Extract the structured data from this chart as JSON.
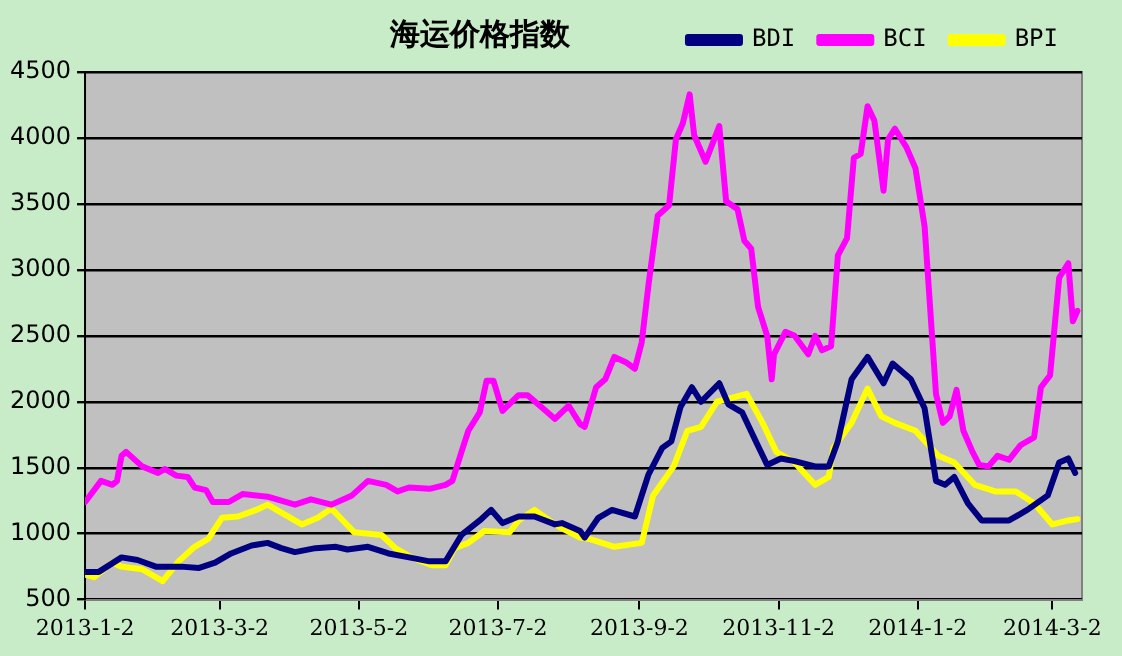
{
  "chart_data": {
    "type": "line",
    "title": "海运价格指数",
    "legend": "top right",
    "grid": "y",
    "marker": "none",
    "line_style": "solid",
    "ylim": [
      500,
      4500
    ],
    "yticks": [
      500,
      1000,
      1500,
      2000,
      2500,
      3000,
      3500,
      4000,
      4500
    ],
    "xlim": [
      "2013-01-02",
      "2014-03-15"
    ],
    "xticks": [
      {
        "value": "2013-01-02",
        "label": "2013-1-2"
      },
      {
        "value": "2013-03-02",
        "label": "2013-3-2"
      },
      {
        "value": "2013-05-02",
        "label": "2013-5-2"
      },
      {
        "value": "2013-07-02",
        "label": "2013-7-2"
      },
      {
        "value": "2013-09-02",
        "label": "2013-9-2"
      },
      {
        "value": "2013-11-02",
        "label": "2013-11-2"
      },
      {
        "value": "2014-01-02",
        "label": "2014-1-2"
      },
      {
        "value": "2014-03-02",
        "label": "2014-3-2"
      }
    ],
    "series": [
      {
        "name": "BDI",
        "color": "#000080",
        "x": [
          "2013-01-02",
          "2013-01-08",
          "2013-01-18",
          "2013-01-25",
          "2013-02-02",
          "2013-02-13",
          "2013-02-21",
          "2013-02-28",
          "2013-03-07",
          "2013-03-16",
          "2013-03-23",
          "2013-03-29",
          "2013-04-04",
          "2013-04-13",
          "2013-04-22",
          "2013-04-27",
          "2013-05-06",
          "2013-05-15",
          "2013-05-24",
          "2013-06-02",
          "2013-06-09",
          "2013-06-16",
          "2013-06-24",
          "2013-06-29",
          "2013-07-04",
          "2013-07-11",
          "2013-07-18",
          "2013-07-27",
          "2013-07-30",
          "2013-08-07",
          "2013-08-09",
          "2013-08-15",
          "2013-08-21",
          "2013-08-31",
          "2013-09-06",
          "2013-09-12",
          "2013-09-16",
          "2013-09-20",
          "2013-09-25",
          "2013-09-29",
          "2013-10-07",
          "2013-10-11",
          "2013-10-17",
          "2013-10-23",
          "2013-10-28",
          "2013-11-03",
          "2013-11-09",
          "2013-11-18",
          "2013-11-24",
          "2013-11-28",
          "2013-12-04",
          "2013-12-11",
          "2013-12-18",
          "2013-12-22",
          "2013-12-30",
          "2014-01-05",
          "2014-01-10",
          "2014-01-14",
          "2014-01-18",
          "2014-01-24",
          "2014-01-30",
          "2014-02-11",
          "2014-02-19",
          "2014-02-28",
          "2014-03-05",
          "2014-03-09",
          "2014-03-12"
        ],
        "values": [
          710,
          710,
          820,
          800,
          750,
          750,
          740,
          780,
          850,
          910,
          930,
          890,
          860,
          890,
          900,
          880,
          900,
          850,
          820,
          790,
          790,
          990,
          1100,
          1180,
          1080,
          1130,
          1130,
          1070,
          1080,
          1020,
          970,
          1120,
          1180,
          1130,
          1450,
          1650,
          1700,
          1960,
          2110,
          2000,
          2140,
          1980,
          1920,
          1700,
          1520,
          1570,
          1550,
          1510,
          1510,
          1700,
          2170,
          2340,
          2140,
          2290,
          2170,
          1950,
          1400,
          1370,
          1430,
          1230,
          1100,
          1100,
          1180,
          1290,
          1540,
          1570,
          1460
        ]
      },
      {
        "name": "BCI",
        "color": "#ff00ff",
        "x": [
          "2013-01-02",
          "2013-01-09",
          "2013-01-14",
          "2013-01-16",
          "2013-01-18",
          "2013-01-20",
          "2013-01-27",
          "2013-02-03",
          "2013-02-06",
          "2013-02-11",
          "2013-02-16",
          "2013-02-19",
          "2013-02-24",
          "2013-02-27",
          "2013-03-06",
          "2013-03-12",
          "2013-03-23",
          "2013-04-04",
          "2013-04-11",
          "2013-04-20",
          "2013-04-29",
          "2013-05-06",
          "2013-05-14",
          "2013-05-19",
          "2013-05-24",
          "2013-06-02",
          "2013-06-09",
          "2013-06-12",
          "2013-06-16",
          "2013-06-19",
          "2013-06-24",
          "2013-06-27",
          "2013-06-30",
          "2013-07-04",
          "2013-07-11",
          "2013-07-15",
          "2013-07-21",
          "2013-07-27",
          "2013-08-02",
          "2013-08-07",
          "2013-08-09",
          "2013-08-14",
          "2013-08-18",
          "2013-08-22",
          "2013-08-27",
          "2013-08-31",
          "2013-09-03",
          "2013-09-06",
          "2013-09-10",
          "2013-09-15",
          "2013-09-18",
          "2013-09-21",
          "2013-09-24",
          "2013-09-26",
          "2013-10-01",
          "2013-10-07",
          "2013-10-10",
          "2013-10-15",
          "2013-10-18",
          "2013-10-21",
          "2013-10-24",
          "2013-10-28",
          "2013-10-30",
          "2013-10-31",
          "2013-11-05",
          "2013-11-09",
          "2013-11-15",
          "2013-11-18",
          "2013-11-21",
          "2013-11-25",
          "2013-11-28",
          "2013-12-02",
          "2013-12-05",
          "2013-12-08",
          "2013-12-11",
          "2013-12-14",
          "2013-12-18",
          "2013-12-20",
          "2013-12-23",
          "2013-12-28",
          "2014-01-01",
          "2014-01-05",
          "2014-01-10",
          "2014-01-13",
          "2014-01-16",
          "2014-01-19",
          "2014-01-22",
          "2014-01-26",
          "2014-01-29",
          "2014-02-02",
          "2014-02-06",
          "2014-02-11",
          "2014-02-16",
          "2014-02-22",
          "2014-02-25",
          "2014-03-01",
          "2014-03-05",
          "2014-03-09",
          "2014-03-11",
          "2014-03-13"
        ],
        "values": [
          1240,
          1400,
          1370,
          1400,
          1590,
          1620,
          1510,
          1460,
          1490,
          1440,
          1430,
          1350,
          1330,
          1240,
          1240,
          1300,
          1280,
          1220,
          1260,
          1220,
          1290,
          1400,
          1370,
          1320,
          1350,
          1340,
          1370,
          1400,
          1620,
          1780,
          1920,
          2160,
          2160,
          1930,
          2050,
          2050,
          1960,
          1870,
          1970,
          1830,
          1810,
          2110,
          2170,
          2340,
          2300,
          2250,
          2450,
          2890,
          3410,
          3490,
          3990,
          4110,
          4330,
          4020,
          3820,
          4090,
          3520,
          3460,
          3220,
          3160,
          2720,
          2500,
          2170,
          2360,
          2530,
          2500,
          2360,
          2500,
          2390,
          2420,
          3110,
          3240,
          3850,
          3880,
          4240,
          4130,
          3600,
          3990,
          4070,
          3930,
          3770,
          3330,
          2060,
          1840,
          1890,
          2090,
          1780,
          1620,
          1520,
          1510,
          1590,
          1560,
          1670,
          1730,
          2110,
          2200,
          2940,
          3050,
          2610,
          2690
        ]
      },
      {
        "name": "BPI",
        "color": "#ffff00",
        "x": [
          "2013-01-02",
          "2013-01-06",
          "2013-01-14",
          "2013-01-18",
          "2013-01-27",
          "2013-02-05",
          "2013-02-12",
          "2013-02-19",
          "2013-02-25",
          "2013-03-03",
          "2013-03-10",
          "2013-03-18",
          "2013-03-23",
          "2013-03-29",
          "2013-04-07",
          "2013-04-14",
          "2013-04-20",
          "2013-04-25",
          "2013-04-30",
          "2013-05-12",
          "2013-05-18",
          "2013-05-25",
          "2013-06-03",
          "2013-06-09",
          "2013-06-13",
          "2013-06-19",
          "2013-06-26",
          "2013-07-07",
          "2013-07-11",
          "2013-07-18",
          "2013-07-27",
          "2013-07-30",
          "2013-08-07",
          "2013-08-11",
          "2013-08-22",
          "2013-09-03",
          "2013-09-08",
          "2013-09-17",
          "2013-09-23",
          "2013-09-29",
          "2013-10-06",
          "2013-10-19",
          "2013-10-26",
          "2013-11-01",
          "2013-11-09",
          "2013-11-18",
          "2013-11-24",
          "2013-11-26",
          "2013-12-04",
          "2013-12-11",
          "2013-12-17",
          "2013-12-23",
          "2014-01-01",
          "2014-01-11",
          "2014-01-18",
          "2014-01-27",
          "2014-02-05",
          "2014-02-14",
          "2014-02-22",
          "2014-03-02",
          "2014-03-09",
          "2014-03-13"
        ],
        "values": [
          690,
          670,
          780,
          750,
          730,
          640,
          790,
          900,
          960,
          1120,
          1130,
          1180,
          1220,
          1160,
          1070,
          1120,
          1190,
          1100,
          1010,
          990,
          890,
          820,
          760,
          760,
          890,
          930,
          1020,
          1010,
          1100,
          1180,
          1070,
          1040,
          970,
          960,
          900,
          930,
          1290,
          1510,
          1780,
          1810,
          2000,
          2060,
          1840,
          1620,
          1540,
          1370,
          1430,
          1650,
          1840,
          2100,
          1890,
          1840,
          1780,
          1590,
          1540,
          1370,
          1320,
          1320,
          1230,
          1070,
          1100,
          1110
        ]
      }
    ]
  }
}
